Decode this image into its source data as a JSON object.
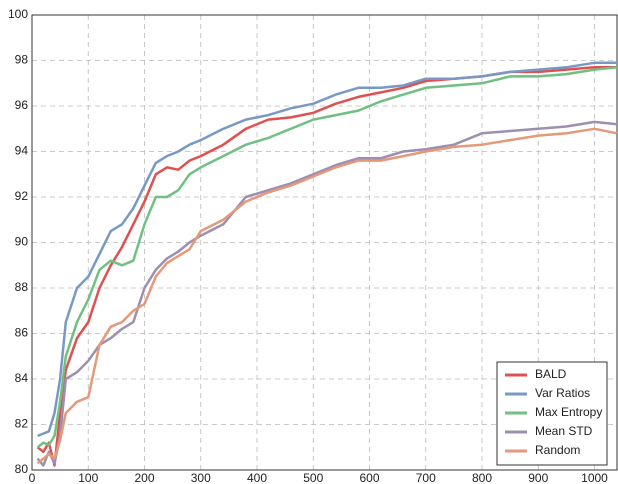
{
  "chart_data": {
    "type": "line",
    "x": [
      10,
      20,
      30,
      40,
      50,
      60,
      80,
      100,
      120,
      140,
      160,
      180,
      200,
      220,
      240,
      260,
      280,
      300,
      340,
      380,
      420,
      460,
      500,
      540,
      580,
      620,
      660,
      700,
      750,
      800,
      850,
      900,
      950,
      1000,
      1040
    ],
    "series": [
      {
        "name": "BALD",
        "color": "#e05050",
        "values": [
          81,
          80.8,
          81.2,
          80.2,
          82.5,
          84.4,
          85.8,
          86.5,
          88,
          89,
          89.8,
          90.8,
          91.8,
          93,
          93.3,
          93.2,
          93.6,
          93.8,
          94.3,
          95,
          95.4,
          95.5,
          95.7,
          96.1,
          96.4,
          96.6,
          96.8,
          97.1,
          97.2,
          97.3,
          97.5,
          97.5,
          97.6,
          97.7,
          97.7
        ]
      },
      {
        "name": "Var Ratios",
        "color": "#7899c4",
        "values": [
          81.5,
          81.6,
          81.7,
          82.5,
          84,
          86.5,
          88,
          88.5,
          89.5,
          90.5,
          90.8,
          91.5,
          92.5,
          93.5,
          93.8,
          94,
          94.3,
          94.5,
          95,
          95.4,
          95.6,
          95.9,
          96.1,
          96.5,
          96.8,
          96.8,
          96.9,
          97.2,
          97.2,
          97.3,
          97.5,
          97.6,
          97.7,
          97.9,
          97.9
        ]
      },
      {
        "name": "Max Entropy",
        "color": "#72bf82",
        "values": [
          81,
          81.2,
          81.1,
          81.5,
          83,
          85,
          86.5,
          87.5,
          88.8,
          89.2,
          89,
          89.2,
          90.8,
          92,
          92,
          92.3,
          93,
          93.3,
          93.8,
          94.3,
          94.6,
          95,
          95.4,
          95.6,
          95.8,
          96.2,
          96.5,
          96.8,
          96.9,
          97,
          97.3,
          97.3,
          97.4,
          97.6,
          97.7
        ]
      },
      {
        "name": "Mean STD",
        "color": "#9e8fb0",
        "values": [
          80.5,
          80.2,
          80.8,
          80.3,
          81.5,
          84,
          84.3,
          84.8,
          85.5,
          85.8,
          86.2,
          86.5,
          88,
          88.8,
          89.3,
          89.6,
          90,
          90.3,
          90.8,
          92,
          92.3,
          92.6,
          93,
          93.4,
          93.7,
          93.7,
          94,
          94.1,
          94.3,
          94.8,
          94.9,
          95,
          95.1,
          95.3,
          95.2
        ]
      },
      {
        "name": "Random",
        "color": "#e39a7a",
        "values": [
          80.3,
          80.5,
          80.7,
          80.5,
          81.3,
          82.5,
          83,
          83.2,
          85.5,
          86.3,
          86.5,
          87,
          87.3,
          88.5,
          89.1,
          89.4,
          89.7,
          90.5,
          91,
          91.8,
          92.2,
          92.5,
          92.9,
          93.3,
          93.6,
          93.6,
          93.8,
          94,
          94.2,
          94.3,
          94.5,
          94.7,
          94.8,
          95,
          94.8
        ]
      }
    ],
    "xlim": [
      0,
      1040
    ],
    "xticks": [
      0,
      100,
      200,
      300,
      400,
      500,
      600,
      700,
      800,
      900,
      1000
    ],
    "ylim": [
      80,
      100
    ],
    "yticks": [
      80,
      82,
      84,
      86,
      88,
      90,
      92,
      94,
      96,
      98,
      100
    ],
    "grid": true,
    "legend": "lower right"
  }
}
